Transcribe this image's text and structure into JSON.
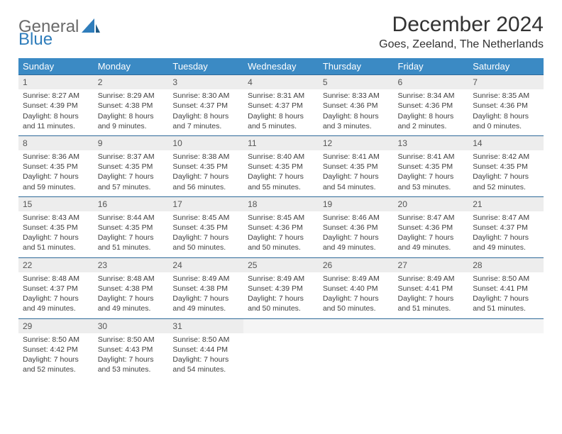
{
  "brand": {
    "part1": "General",
    "part2": "Blue"
  },
  "title": "December 2024",
  "location": "Goes, Zeeland, The Netherlands",
  "weekdays": [
    "Sunday",
    "Monday",
    "Tuesday",
    "Wednesday",
    "Thursday",
    "Friday",
    "Saturday"
  ],
  "colors": {
    "header_bg": "#3b8ac4",
    "header_text": "#ffffff",
    "daynum_bg": "#ededed",
    "border": "#2f6a99",
    "logo_gray": "#6a6a6a",
    "logo_blue": "#2f7dbb"
  },
  "weeks": [
    [
      {
        "n": "1",
        "sr": "8:27 AM",
        "ss": "4:39 PM",
        "dl": "8 hours and 11 minutes."
      },
      {
        "n": "2",
        "sr": "8:29 AM",
        "ss": "4:38 PM",
        "dl": "8 hours and 9 minutes."
      },
      {
        "n": "3",
        "sr": "8:30 AM",
        "ss": "4:37 PM",
        "dl": "8 hours and 7 minutes."
      },
      {
        "n": "4",
        "sr": "8:31 AM",
        "ss": "4:37 PM",
        "dl": "8 hours and 5 minutes."
      },
      {
        "n": "5",
        "sr": "8:33 AM",
        "ss": "4:36 PM",
        "dl": "8 hours and 3 minutes."
      },
      {
        "n": "6",
        "sr": "8:34 AM",
        "ss": "4:36 PM",
        "dl": "8 hours and 2 minutes."
      },
      {
        "n": "7",
        "sr": "8:35 AM",
        "ss": "4:36 PM",
        "dl": "8 hours and 0 minutes."
      }
    ],
    [
      {
        "n": "8",
        "sr": "8:36 AM",
        "ss": "4:35 PM",
        "dl": "7 hours and 59 minutes."
      },
      {
        "n": "9",
        "sr": "8:37 AM",
        "ss": "4:35 PM",
        "dl": "7 hours and 57 minutes."
      },
      {
        "n": "10",
        "sr": "8:38 AM",
        "ss": "4:35 PM",
        "dl": "7 hours and 56 minutes."
      },
      {
        "n": "11",
        "sr": "8:40 AM",
        "ss": "4:35 PM",
        "dl": "7 hours and 55 minutes."
      },
      {
        "n": "12",
        "sr": "8:41 AM",
        "ss": "4:35 PM",
        "dl": "7 hours and 54 minutes."
      },
      {
        "n": "13",
        "sr": "8:41 AM",
        "ss": "4:35 PM",
        "dl": "7 hours and 53 minutes."
      },
      {
        "n": "14",
        "sr": "8:42 AM",
        "ss": "4:35 PM",
        "dl": "7 hours and 52 minutes."
      }
    ],
    [
      {
        "n": "15",
        "sr": "8:43 AM",
        "ss": "4:35 PM",
        "dl": "7 hours and 51 minutes."
      },
      {
        "n": "16",
        "sr": "8:44 AM",
        "ss": "4:35 PM",
        "dl": "7 hours and 51 minutes."
      },
      {
        "n": "17",
        "sr": "8:45 AM",
        "ss": "4:35 PM",
        "dl": "7 hours and 50 minutes."
      },
      {
        "n": "18",
        "sr": "8:45 AM",
        "ss": "4:36 PM",
        "dl": "7 hours and 50 minutes."
      },
      {
        "n": "19",
        "sr": "8:46 AM",
        "ss": "4:36 PM",
        "dl": "7 hours and 49 minutes."
      },
      {
        "n": "20",
        "sr": "8:47 AM",
        "ss": "4:36 PM",
        "dl": "7 hours and 49 minutes."
      },
      {
        "n": "21",
        "sr": "8:47 AM",
        "ss": "4:37 PM",
        "dl": "7 hours and 49 minutes."
      }
    ],
    [
      {
        "n": "22",
        "sr": "8:48 AM",
        "ss": "4:37 PM",
        "dl": "7 hours and 49 minutes."
      },
      {
        "n": "23",
        "sr": "8:48 AM",
        "ss": "4:38 PM",
        "dl": "7 hours and 49 minutes."
      },
      {
        "n": "24",
        "sr": "8:49 AM",
        "ss": "4:38 PM",
        "dl": "7 hours and 49 minutes."
      },
      {
        "n": "25",
        "sr": "8:49 AM",
        "ss": "4:39 PM",
        "dl": "7 hours and 50 minutes."
      },
      {
        "n": "26",
        "sr": "8:49 AM",
        "ss": "4:40 PM",
        "dl": "7 hours and 50 minutes."
      },
      {
        "n": "27",
        "sr": "8:49 AM",
        "ss": "4:41 PM",
        "dl": "7 hours and 51 minutes."
      },
      {
        "n": "28",
        "sr": "8:50 AM",
        "ss": "4:41 PM",
        "dl": "7 hours and 51 minutes."
      }
    ],
    [
      {
        "n": "29",
        "sr": "8:50 AM",
        "ss": "4:42 PM",
        "dl": "7 hours and 52 minutes."
      },
      {
        "n": "30",
        "sr": "8:50 AM",
        "ss": "4:43 PM",
        "dl": "7 hours and 53 minutes."
      },
      {
        "n": "31",
        "sr": "8:50 AM",
        "ss": "4:44 PM",
        "dl": "7 hours and 54 minutes."
      },
      null,
      null,
      null,
      null
    ]
  ],
  "labels": {
    "sunrise": "Sunrise:",
    "sunset": "Sunset:",
    "daylight": "Daylight:"
  }
}
